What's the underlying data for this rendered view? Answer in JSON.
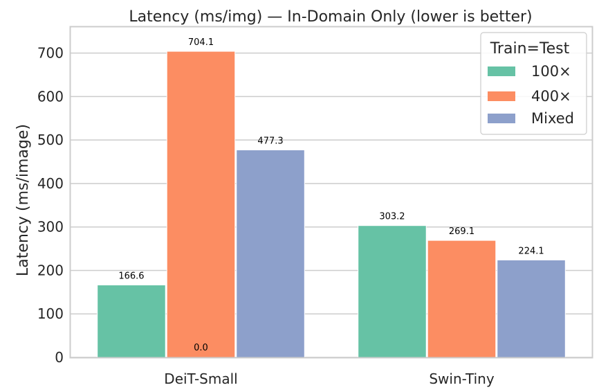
{
  "chart_data": {
    "type": "bar",
    "title": "Latency (ms/img) — In-Domain Only (lower is better)",
    "xlabel": "",
    "ylabel": "Latency (ms/image)",
    "ylim": [
      0,
      760
    ],
    "yticks": [
      0,
      100,
      200,
      300,
      400,
      500,
      600,
      700
    ],
    "categories": [
      "DeiT-Small",
      "Swin-Tiny"
    ],
    "series": [
      {
        "name": "100×",
        "values": [
          166.6,
          303.2
        ],
        "color": "#66c2a5",
        "value_labels": [
          "166.6",
          "303.2"
        ]
      },
      {
        "name": "400×",
        "values": [
          704.1,
          269.1
        ],
        "color": "#fc8d62",
        "value_labels": [
          "704.1",
          "269.1"
        ]
      },
      {
        "name": "Mixed",
        "values": [
          477.3,
          224.1
        ],
        "color": "#8da0cb",
        "value_labels": [
          "477.3",
          "224.1"
        ]
      }
    ],
    "extra_labels": [
      {
        "category": "DeiT-Small",
        "text": "0.0"
      }
    ],
    "legend": {
      "title": "Train=Test",
      "position": "top-right"
    },
    "grid": "horizontal",
    "background": "#ffffff",
    "grid_color": "#cccccc"
  }
}
